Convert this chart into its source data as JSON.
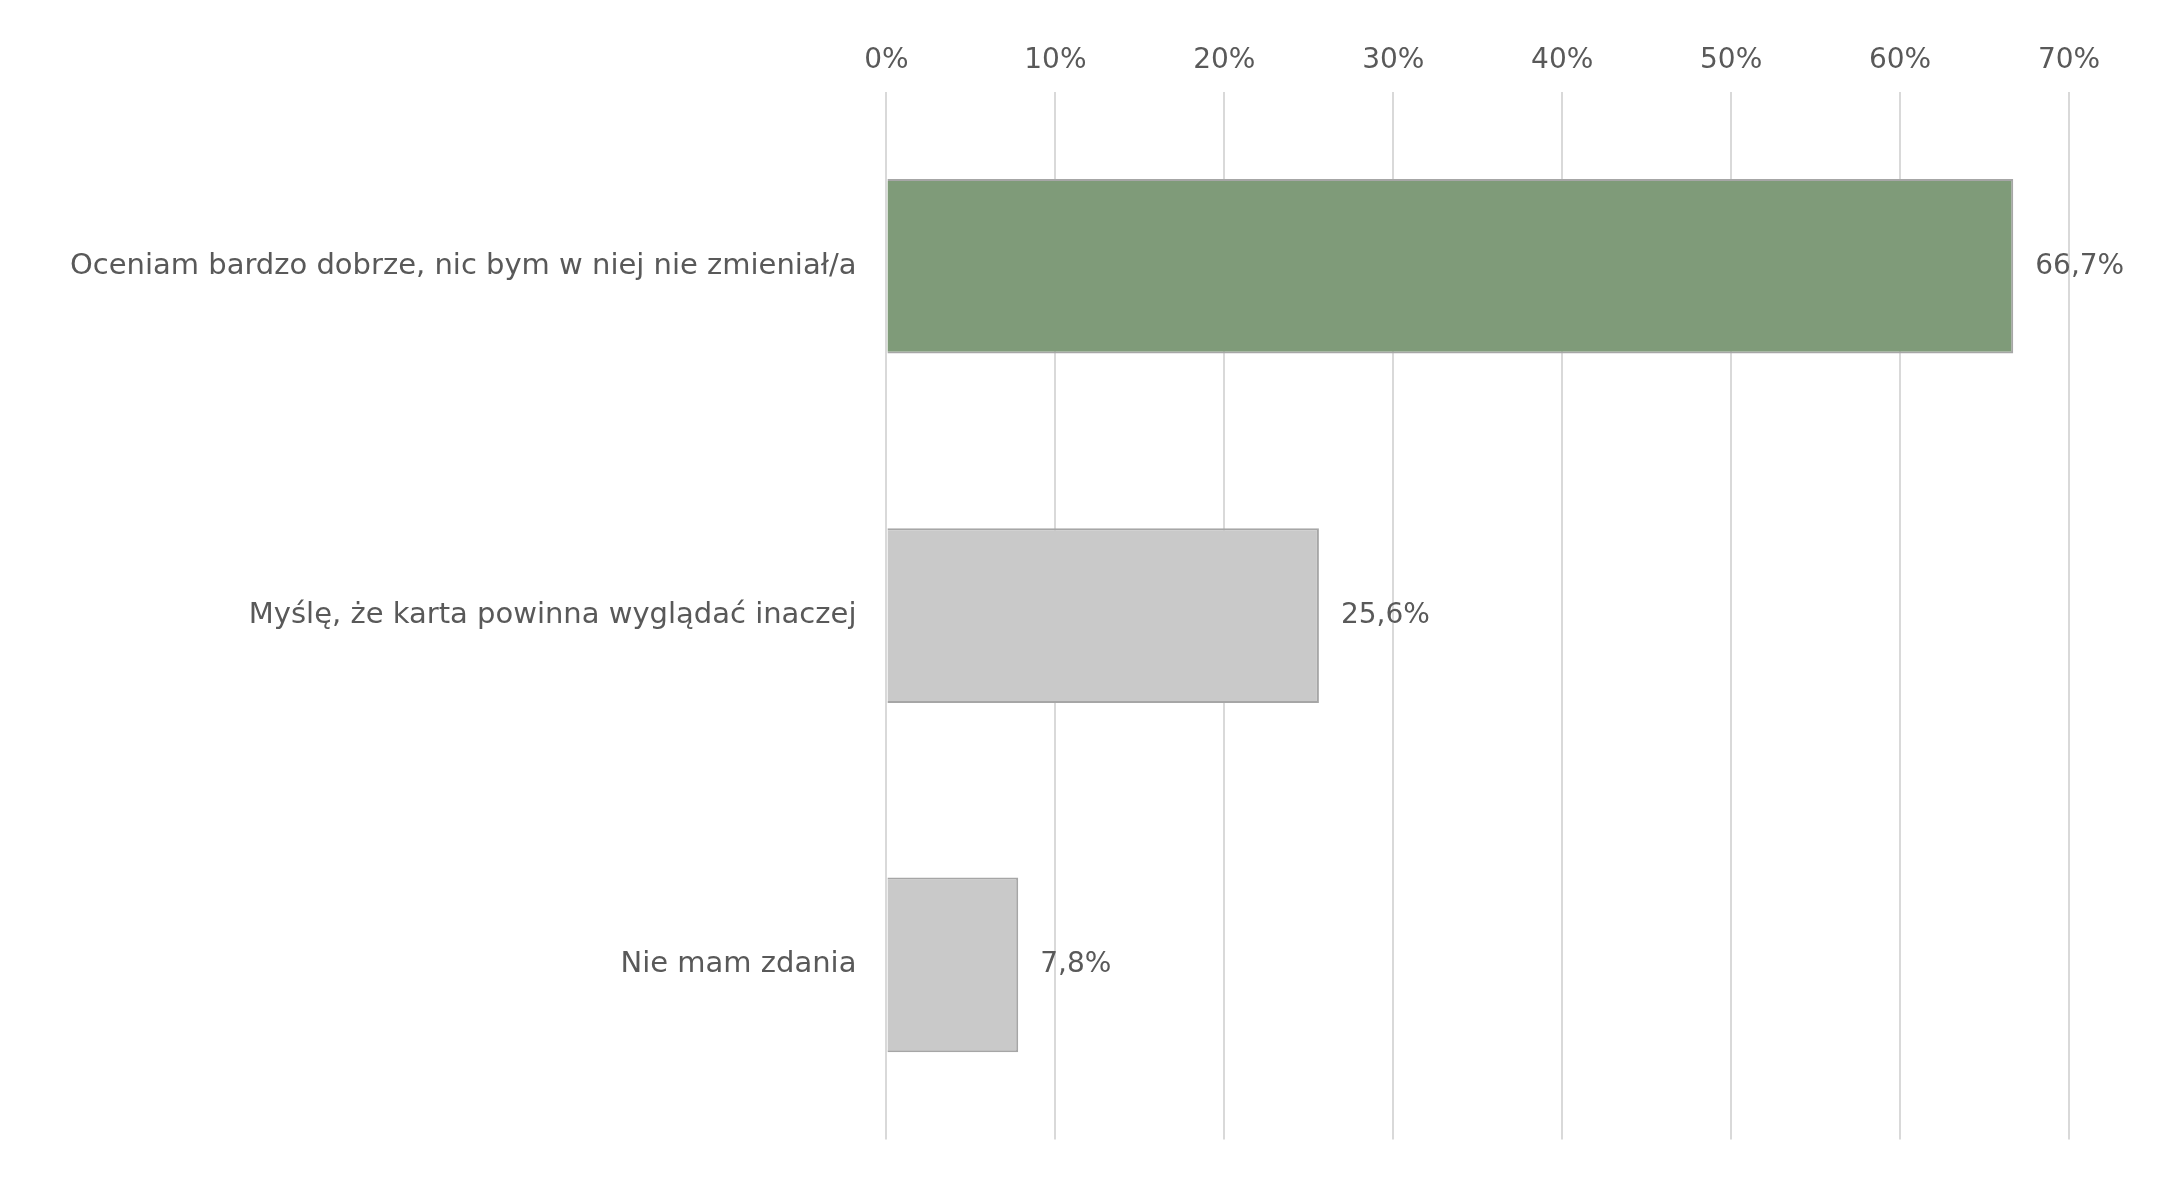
{
  "chart_data": {
    "type": "bar",
    "orientation": "horizontal",
    "categories": [
      "Oceniam bardzo dobrze, nic bym w niej nie zmieniał/a",
      "Myślę, że karta powinna wyglądać inaczej",
      "Nie mam zdania"
    ],
    "values": [
      66.7,
      25.6,
      7.8
    ],
    "colors": [
      "#7f9b79",
      "#c9c9c9",
      "#c9c9c9"
    ],
    "value_labels": [
      "66,7%",
      "25,6%",
      "7,8%"
    ],
    "xlim": [
      0,
      70
    ],
    "xticks": [
      {
        "value": 0,
        "label": "0%"
      },
      {
        "value": 10,
        "label": "10%"
      },
      {
        "value": 20,
        "label": "20%"
      },
      {
        "value": 30,
        "label": "30%"
      },
      {
        "value": 40,
        "label": "40%"
      },
      {
        "value": 50,
        "label": "50%"
      },
      {
        "value": 60,
        "label": "60%"
      },
      {
        "value": 70,
        "label": "70%"
      }
    ],
    "grid": "x",
    "legend": false
  }
}
